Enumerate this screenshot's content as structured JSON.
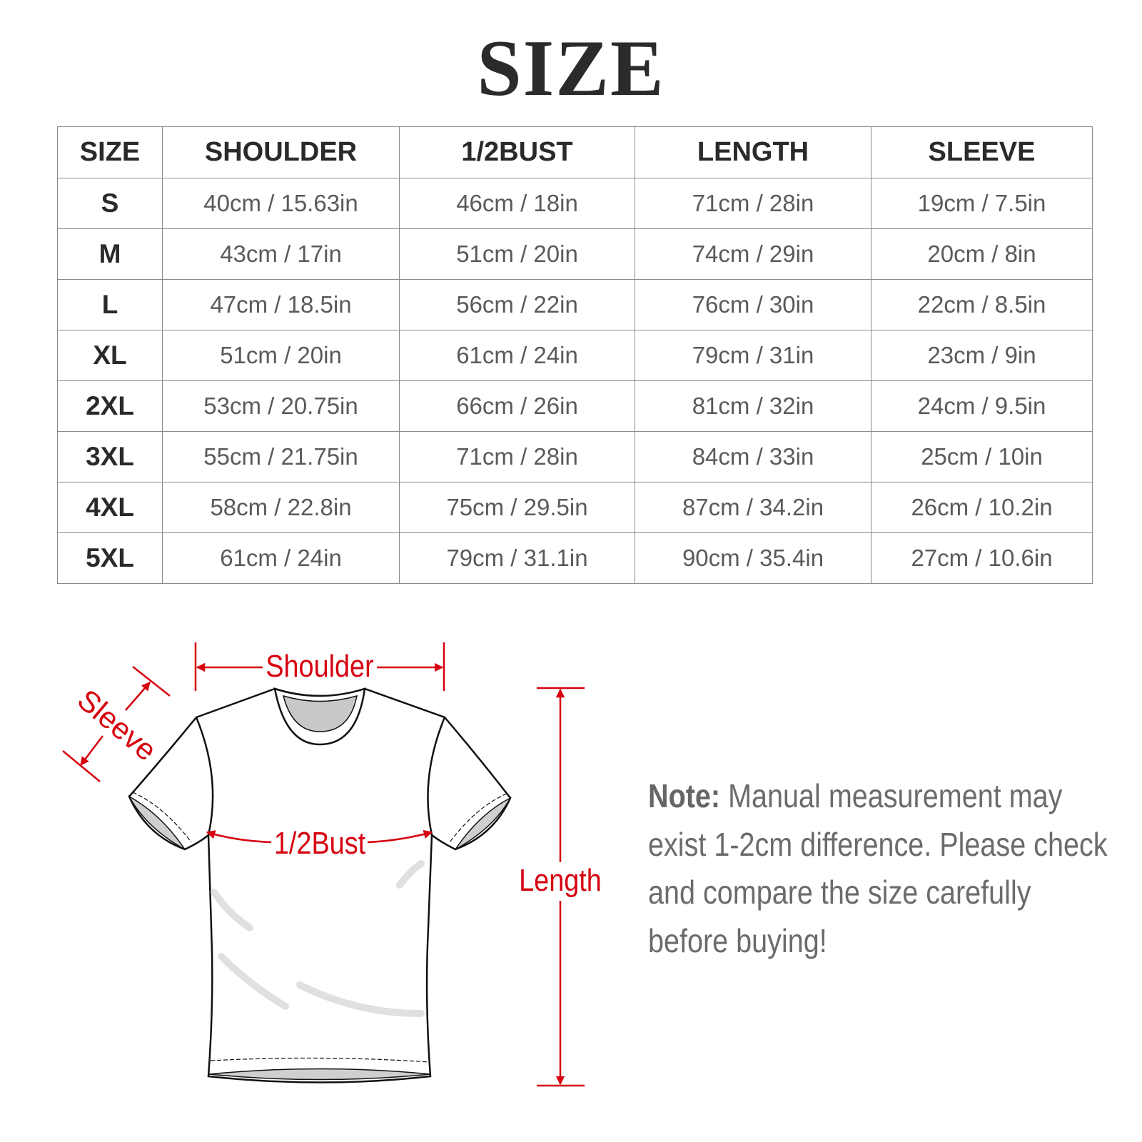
{
  "title": "SIZE",
  "table": {
    "headers": [
      "SIZE",
      "SHOULDER",
      "1/2BUST",
      "LENGTH",
      "SLEEVE"
    ],
    "rows": [
      [
        "S",
        "40cm / 15.63in",
        "46cm / 18in",
        "71cm / 28in",
        "19cm / 7.5in"
      ],
      [
        "M",
        "43cm / 17in",
        "51cm / 20in",
        "74cm / 29in",
        "20cm / 8in"
      ],
      [
        "L",
        "47cm / 18.5in",
        "56cm / 22in",
        "76cm / 30in",
        "22cm / 8.5in"
      ],
      [
        "XL",
        "51cm / 20in",
        "61cm / 24in",
        "79cm / 31in",
        "23cm / 9in"
      ],
      [
        "2XL",
        "53cm / 20.75in",
        "66cm / 26in",
        "81cm / 32in",
        "24cm / 9.5in"
      ],
      [
        "3XL",
        "55cm / 21.75in",
        "71cm / 28in",
        "84cm / 33in",
        "25cm / 10in"
      ],
      [
        "4XL",
        "58cm / 22.8in",
        "75cm / 29.5in",
        "87cm / 34.2in",
        "26cm / 10.2in"
      ],
      [
        "5XL",
        "61cm / 24in",
        "79cm / 31.1in",
        "90cm / 35.4in",
        "27cm / 10.6in"
      ]
    ]
  },
  "diagram": {
    "accent_color": "#d6000f",
    "labels": {
      "shoulder": "Shoulder",
      "sleeve": "Sleeve",
      "bust": "1/2Bust",
      "length": "Length"
    }
  },
  "note": {
    "label": "Note:",
    "text": " Manual measurement may exist 1-2cm difference. Please check and compare the size carefully before buying!"
  }
}
